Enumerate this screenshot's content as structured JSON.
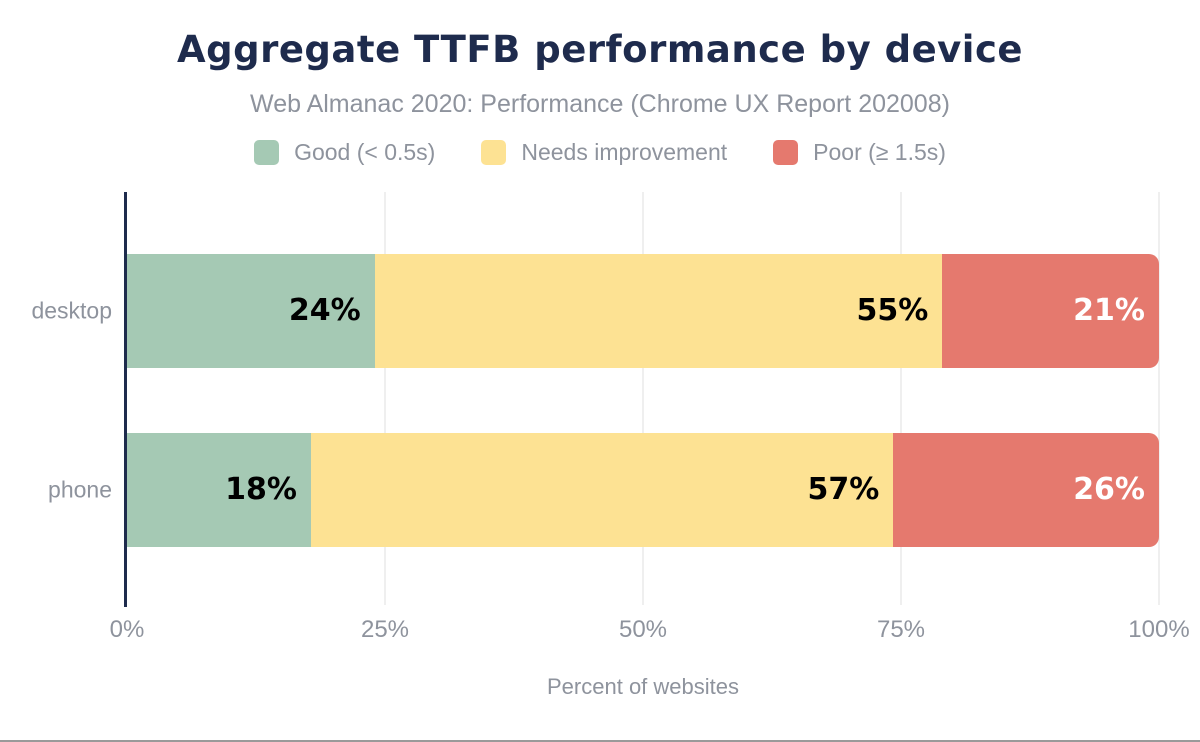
{
  "style": {
    "title_color": "#1e2b4d",
    "muted_text_color": "#8e939d",
    "grid_color": "#efefef",
    "axis_color": "#1e2b4d",
    "bottom_border_color": "#9a9a9a",
    "background_color": "#ffffff"
  },
  "chart_data": {
    "type": "bar",
    "stacked": true,
    "orientation": "horizontal",
    "title": "Aggregate TTFB performance by device",
    "subtitle": "Web Almanac 2020: Performance (Chrome UX Report 202008)",
    "xlabel": "Percent of websites",
    "xlim": [
      0,
      100
    ],
    "x_ticks": [
      "0%",
      "25%",
      "50%",
      "75%",
      "100%"
    ],
    "grid": true,
    "legend_position": "top",
    "categories": [
      "desktop",
      "phone"
    ],
    "series": [
      {
        "name": "Good (< 0.5s)",
        "color": "#a5c9b4",
        "value_label_color": "#000000",
        "values": [
          24,
          18
        ]
      },
      {
        "name": "Needs improvement",
        "color": "#fde293",
        "value_label_color": "#000000",
        "values": [
          55,
          57
        ]
      },
      {
        "name": "Poor (≥ 1.5s)",
        "color": "#e5796e",
        "value_label_color": "#ffffff",
        "values": [
          21,
          26
        ]
      }
    ],
    "value_label_format": "{value}%"
  }
}
